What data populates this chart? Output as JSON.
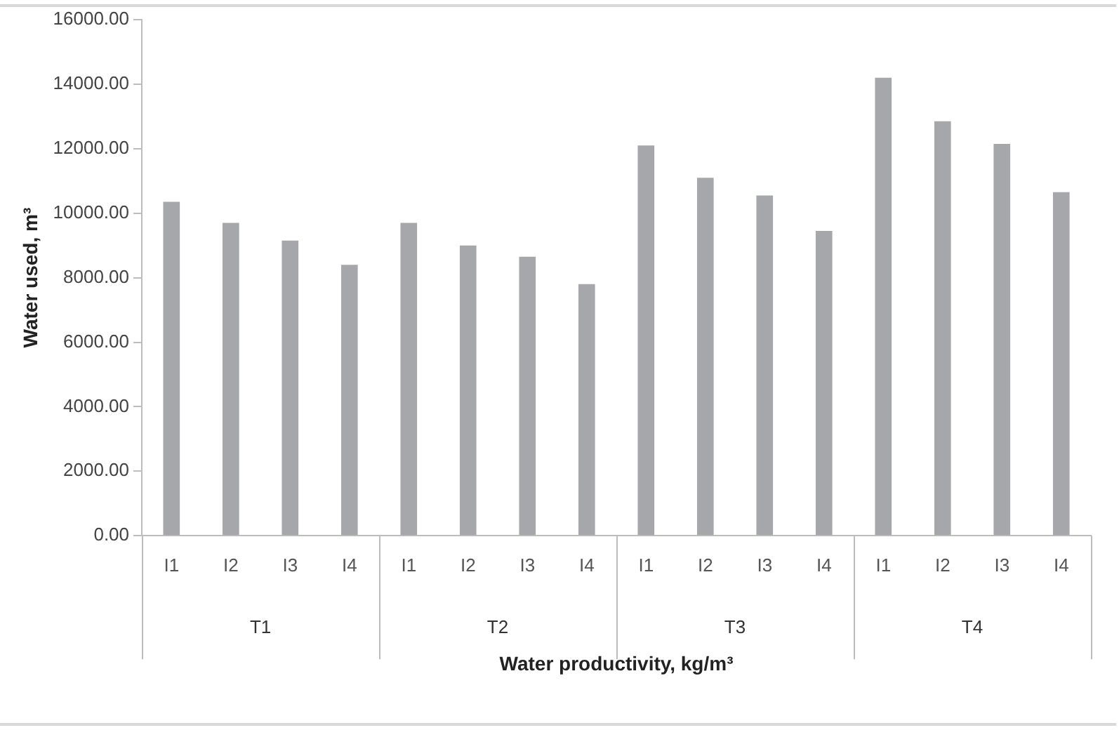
{
  "chart_data": {
    "type": "bar",
    "xlabel": "Water productivity, kg/m³",
    "ylabel": "Water used, m³",
    "categories": [
      "I1",
      "I2",
      "I3",
      "I4",
      "I1",
      "I2",
      "I3",
      "I4",
      "I1",
      "I2",
      "I3",
      "I4",
      "I1",
      "I2",
      "I3",
      "I4"
    ],
    "values": [
      10350,
      9700,
      9150,
      8400,
      9700,
      9000,
      8650,
      7800,
      12100,
      11100,
      10550,
      9450,
      14200,
      12850,
      12150,
      10650
    ],
    "color": "#a6a7ab",
    "ylim": [
      0,
      16000
    ],
    "yticks": [
      {
        "value": 0,
        "label": "0.00"
      },
      {
        "value": 2000,
        "label": "2000.00"
      },
      {
        "value": 4000,
        "label": "4000.00"
      },
      {
        "value": 6000,
        "label": "6000.00"
      },
      {
        "value": 8000,
        "label": "8000.00"
      },
      {
        "value": 10000,
        "label": "10000.00"
      },
      {
        "value": 12000,
        "label": "12000.00"
      },
      {
        "value": 14000,
        "label": "14000.00"
      },
      {
        "value": 16000,
        "label": "16000.00"
      }
    ],
    "annotations": [
      "T1",
      "T2",
      "T3",
      "T4"
    ],
    "grid": false,
    "legend": false
  }
}
